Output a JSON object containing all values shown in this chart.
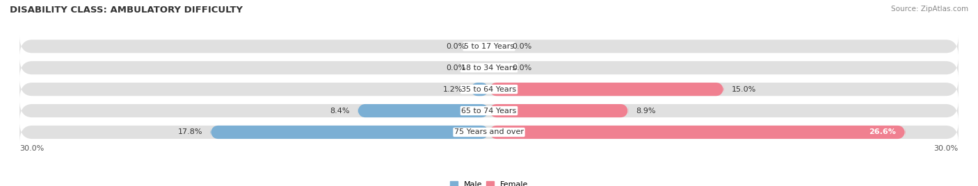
{
  "title": "DISABILITY CLASS: AMBULATORY DIFFICULTY",
  "source": "Source: ZipAtlas.com",
  "categories": [
    "5 to 17 Years",
    "18 to 34 Years",
    "35 to 64 Years",
    "65 to 74 Years",
    "75 Years and over"
  ],
  "male_values": [
    0.0,
    0.0,
    1.2,
    8.4,
    17.8
  ],
  "female_values": [
    0.0,
    0.0,
    15.0,
    8.9,
    26.6
  ],
  "male_color": "#7bafd4",
  "female_color": "#f08090",
  "bar_bg_color": "#e0e0e0",
  "bar_height": 0.62,
  "xlim": 30.0,
  "legend_male": "Male",
  "legend_female": "Female",
  "title_fontsize": 9.5,
  "label_fontsize": 8,
  "category_fontsize": 8,
  "tick_fontsize": 8,
  "source_fontsize": 7.5
}
